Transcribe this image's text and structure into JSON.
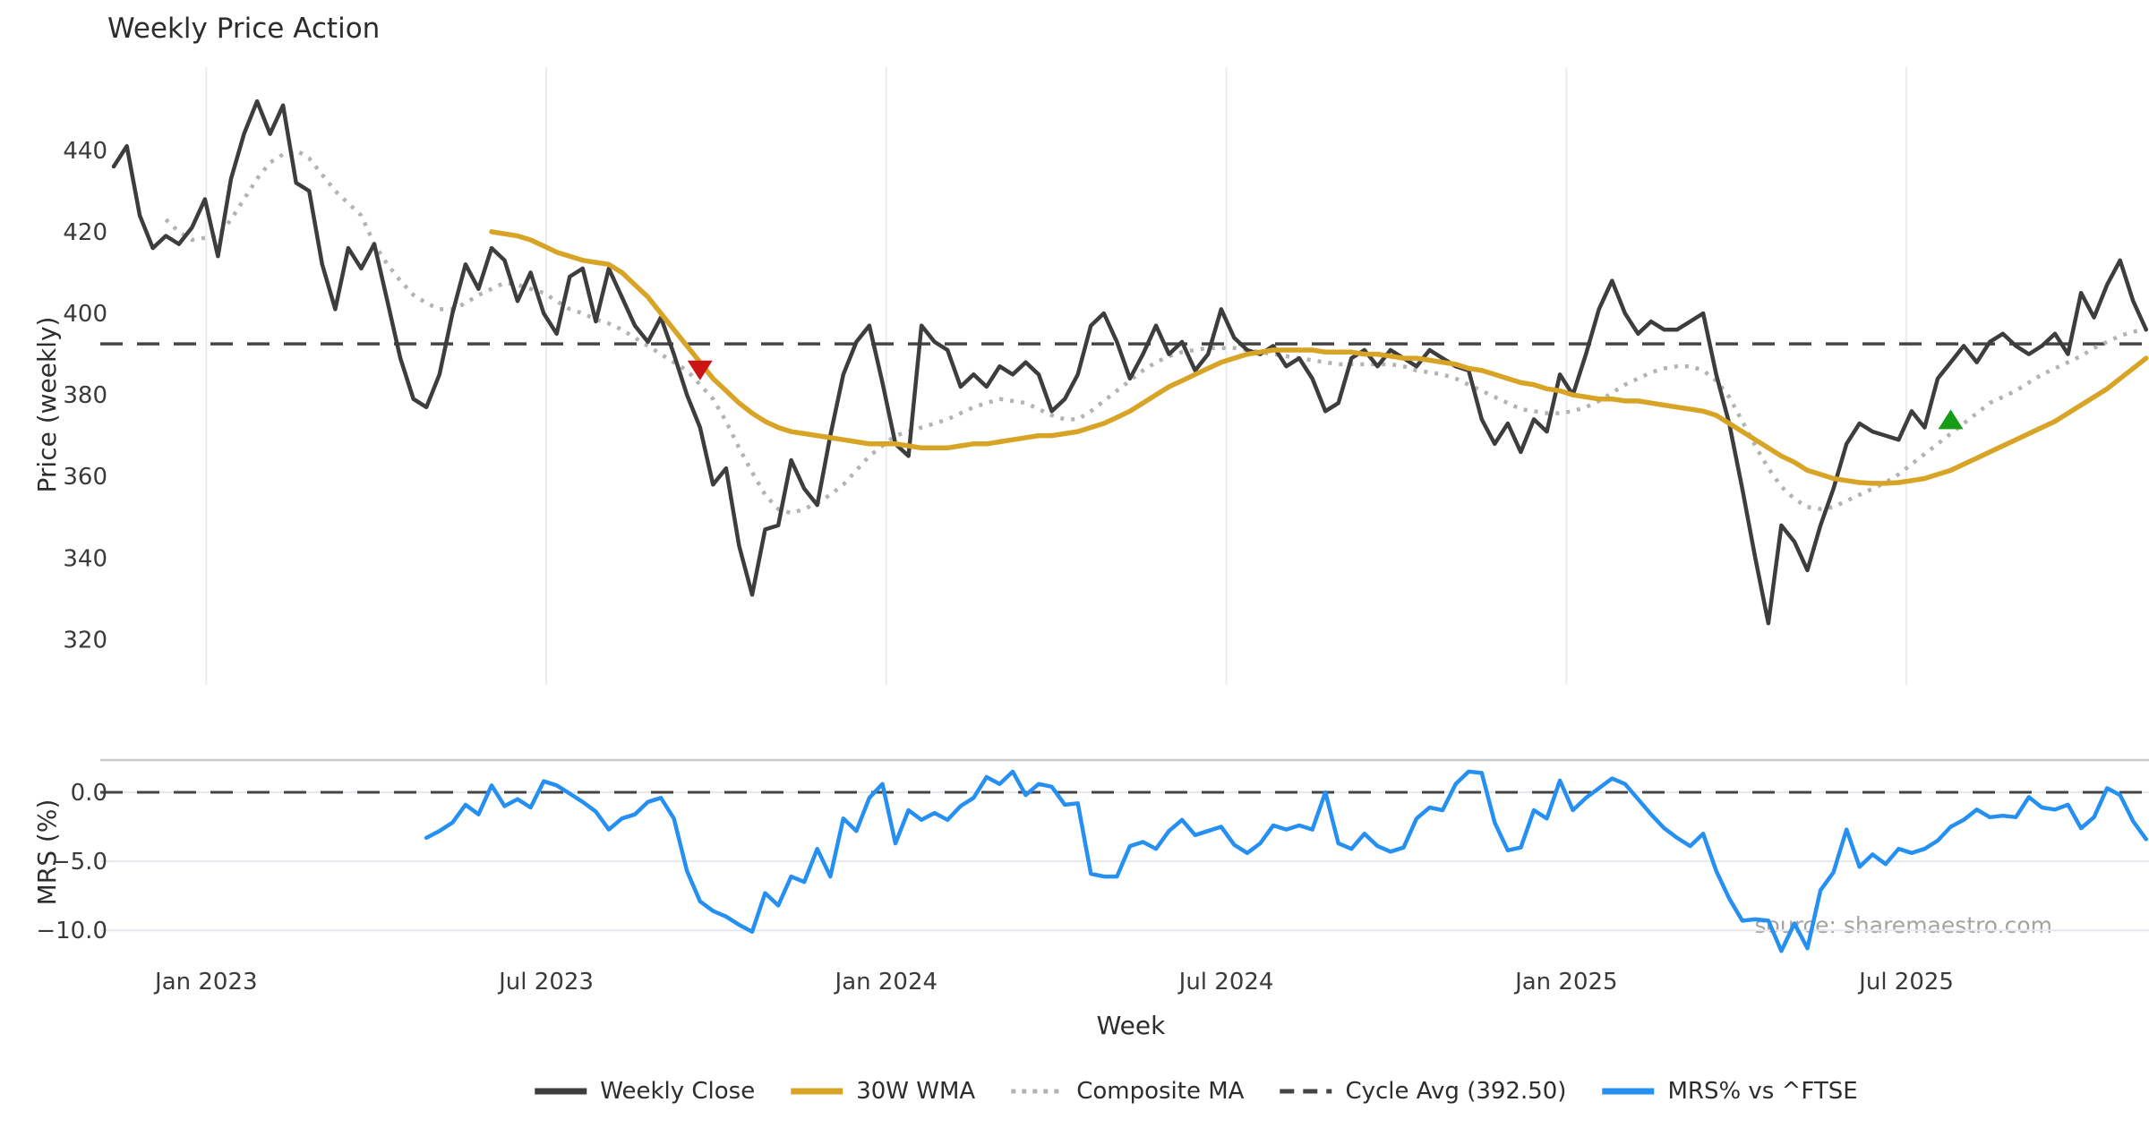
{
  "title": "Weekly Price Action",
  "source_note": "source: sharemaestro.com",
  "chart_data": {
    "type": "line",
    "title": "Weekly Price Action",
    "xlabel": "Week",
    "x_ticks": [
      {
        "week": 7.1,
        "label": "Jan 2023"
      },
      {
        "week": 33.2,
        "label": "Jul 2023"
      },
      {
        "week": 59.3,
        "label": "Jan 2024"
      },
      {
        "week": 85.4,
        "label": "Jul 2024"
      },
      {
        "week": 111.5,
        "label": "Jan 2025"
      },
      {
        "week": 137.6,
        "label": "Jul 2025"
      }
    ],
    "n_weeks": 157,
    "colors": {
      "weekly_close": "#3d3d3d",
      "wma": "#d7a426",
      "composite": "#b3b3b3",
      "cycle_avg": "#454545",
      "mrs": "#2590f2",
      "sell": "#cd1414",
      "buy": "#169c16",
      "grid_top": "#ececf0",
      "grid_bottom": "#e7e7ee",
      "spine": "#c9c9c9",
      "text": "#2d2d2d",
      "tick_text": "#3a3a3a",
      "source_text": "#a3a3a3"
    },
    "panels": [
      {
        "ylabel": "Price (weekly)",
        "yticks": [
          440,
          420,
          400,
          380,
          360,
          340,
          320
        ],
        "ytick_labels": [
          "440",
          "420",
          "400",
          "380",
          "360",
          "340",
          "320"
        ],
        "cycle_avg_value": 392.5,
        "series": [
          {
            "name": "Weekly Close",
            "style": "solid",
            "color_key": "weekly_close",
            "start_week": 0,
            "values": [
              436,
              441,
              424,
              416,
              419,
              417,
              421,
              428,
              414,
              433,
              444,
              452,
              444,
              451,
              432,
              430,
              412,
              401,
              416,
              411,
              417,
              403,
              389,
              379,
              377,
              385,
              400,
              412,
              406,
              416,
              413,
              403,
              410,
              400,
              395,
              409,
              411,
              398,
              411,
              404,
              397,
              393,
              399,
              390,
              380,
              372,
              358,
              362,
              343,
              331,
              347,
              348,
              364,
              357,
              353,
              370,
              385,
              393,
              397,
              383,
              368,
              365,
              397,
              393,
              391,
              382,
              385,
              382,
              387,
              385,
              388,
              385,
              376,
              379,
              385,
              397,
              400,
              393,
              384,
              390,
              397,
              390,
              393,
              386,
              390,
              401,
              394,
              391,
              390,
              392,
              387,
              389,
              384,
              376,
              378,
              389,
              391,
              387,
              391,
              389,
              387,
              391,
              389,
              387,
              386,
              374,
              368,
              373,
              366,
              374,
              371,
              385,
              380,
              390,
              401,
              408,
              400,
              395,
              398,
              396,
              396,
              398,
              400,
              385,
              373,
              357,
              340,
              324,
              348,
              344,
              337,
              348,
              357,
              368,
              373,
              371,
              370,
              369,
              376,
              372,
              384,
              388,
              392,
              388,
              393,
              395,
              392,
              390,
              392,
              395,
              390,
              405,
              399,
              407,
              413,
              403,
              396
            ]
          },
          {
            "name": "30W WMA",
            "style": "solid",
            "color_key": "wma",
            "start_week": 29,
            "values": [
              420,
              419.5,
              419,
              418,
              416.5,
              415,
              414,
              413,
              412.5,
              412,
              410,
              407,
              404,
              400,
              396,
              392,
              388,
              384,
              381,
              378,
              375.5,
              373.5,
              372,
              371,
              370.5,
              370,
              369.5,
              369,
              368.5,
              368,
              368,
              368,
              367.5,
              367,
              367,
              367,
              367.5,
              368,
              368,
              368.5,
              369,
              369.5,
              370,
              370,
              370.5,
              371,
              372,
              373,
              374.5,
              376,
              378,
              380,
              382,
              383.5,
              385,
              386.5,
              388,
              389,
              390,
              390.5,
              391,
              391,
              391,
              391,
              390.5,
              390.5,
              390.5,
              390,
              390,
              389.5,
              389,
              389,
              388.5,
              388,
              387.5,
              386.5,
              386,
              385,
              384,
              383,
              382.5,
              381.5,
              381,
              380,
              379.5,
              379,
              379,
              378.5,
              378.5,
              378,
              377.5,
              377,
              376.5,
              376,
              375,
              373,
              371,
              369,
              367,
              365,
              363.5,
              361.5,
              360.5,
              359.5,
              359,
              358.5,
              358.3,
              358.3,
              358.5,
              359,
              359.5,
              360.5,
              361.5,
              363,
              364.5,
              366,
              367.5,
              369,
              370.5,
              372,
              373.5,
              375.5,
              377.5,
              379.5,
              381.5,
              384,
              386.5,
              389
            ]
          },
          {
            "name": "Composite MA",
            "style": "dotted",
            "color_key": "composite",
            "start_week": 4,
            "values": [
              423,
              420,
              418,
              418.5,
              419,
              423,
              428,
              433,
              437,
              439,
              440,
              438,
              434,
              430,
              427,
              424,
              417,
              412,
              408,
              404.5,
              402.5,
              401,
              401,
              402.5,
              404.5,
              406,
              407.5,
              407,
              406,
              405,
              403,
              401,
              400,
              398.5,
              397.5,
              396,
              394,
              392,
              390,
              388,
              386,
              382.5,
              379,
              373.5,
              367,
              361,
              355.5,
              352,
              351,
              352,
              353.5,
              355.5,
              358,
              361.5,
              365,
              367.5,
              370,
              371,
              372,
              373,
              374,
              375.5,
              377,
              378,
              379,
              378.5,
              378,
              376.5,
              375,
              374,
              374,
              376,
              378.5,
              381,
              383.5,
              386,
              388,
              389.5,
              390.5,
              391,
              391.5,
              391.5,
              391.5,
              391,
              390.5,
              390,
              389.5,
              389,
              388.5,
              388,
              387.5,
              387.5,
              387.5,
              387.5,
              387.5,
              387,
              386,
              385.5,
              385,
              384,
              382.5,
              381,
              379.5,
              378,
              376.5,
              376,
              375.5,
              375.5,
              376,
              377,
              378.5,
              380.5,
              382.5,
              384,
              385.5,
              386.5,
              387,
              387,
              386,
              383.5,
              379.5,
              373.5,
              367.5,
              362,
              357.5,
              354.5,
              352.5,
              352,
              352.5,
              354,
              355.5,
              357,
              358.5,
              360.5,
              363,
              365.5,
              368,
              370.5,
              373,
              375.5,
              378,
              379.5,
              381,
              383,
              385,
              386.5,
              388,
              389.5,
              391.5,
              393,
              394.5,
              395.5,
              396
            ]
          }
        ],
        "markers": [
          {
            "name": "sell-signal",
            "shape": "triangle-down",
            "color_key": "sell",
            "week": 45,
            "price": 386
          },
          {
            "name": "buy-signal",
            "shape": "triangle-up",
            "color_key": "buy",
            "week": 141,
            "price": 374
          }
        ]
      },
      {
        "ylabel": "MRS (%)",
        "yticks": [
          0,
          -5,
          -10
        ],
        "ytick_labels": [
          "0.0",
          "−5.0",
          "−10.0"
        ],
        "zero_line_value": 0,
        "series": [
          {
            "name": "MRS% vs ^FTSE",
            "style": "solid",
            "color_key": "mrs",
            "start_week": 24,
            "values": [
              -3.3,
              -2.8,
              -2.2,
              -0.9,
              -1.6,
              0.5,
              -1.0,
              -0.5,
              -1.1,
              0.8,
              0.5,
              -0.1,
              -0.7,
              -1.4,
              -2.7,
              -1.9,
              -1.6,
              -0.7,
              -0.4,
              -1.9,
              -5.7,
              -7.9,
              -8.6,
              -9.0,
              -9.6,
              -10.1,
              -7.3,
              -8.2,
              -6.1,
              -6.5,
              -4.1,
              -6.1,
              -1.9,
              -2.8,
              -0.4,
              0.6,
              -3.7,
              -1.3,
              -2.0,
              -1.5,
              -2.0,
              -1.0,
              -0.4,
              1.1,
              0.6,
              1.5,
              -0.2,
              0.6,
              0.4,
              -0.9,
              -0.8,
              -5.9,
              -6.1,
              -6.1,
              -3.9,
              -3.6,
              -4.1,
              -2.8,
              -2.0,
              -3.1,
              -2.8,
              -2.5,
              -3.8,
              -4.4,
              -3.7,
              -2.4,
              -2.7,
              -2.4,
              -2.7,
              0.0,
              -3.7,
              -4.1,
              -3.0,
              -3.9,
              -4.3,
              -4.0,
              -1.9,
              -1.1,
              -1.3,
              0.6,
              1.5,
              1.4,
              -2.2,
              -4.2,
              -4.0,
              -1.3,
              -1.9,
              0.85,
              -1.3,
              -0.4,
              0.3,
              1.0,
              0.6,
              -0.5,
              -1.6,
              -2.6,
              -3.3,
              -3.9,
              -3.0,
              -5.7,
              -7.7,
              -9.3,
              -9.2,
              -9.3,
              -11.5,
              -9.5,
              -11.3,
              -7.1,
              -5.8,
              -2.7,
              -5.4,
              -4.5,
              -5.2,
              -4.1,
              -4.4,
              -4.1,
              -3.5,
              -2.5,
              -2.0,
              -1.25,
              -1.8,
              -1.7,
              -1.8,
              -0.35,
              -1.1,
              -1.25,
              -0.9,
              -2.6,
              -1.8,
              0.3,
              -0.2,
              -2.1,
              -3.4
            ]
          }
        ]
      }
    ],
    "legend": [
      {
        "label": "Weekly Close",
        "style": "solid",
        "color_key": "weekly_close"
      },
      {
        "label": "30W WMA",
        "style": "solid",
        "color_key": "wma"
      },
      {
        "label": "Composite MA",
        "style": "dotted",
        "color_key": "composite"
      },
      {
        "label": "Cycle Avg (392.50)",
        "style": "dashed",
        "color_key": "cycle_avg"
      },
      {
        "label": "MRS% vs ^FTSE",
        "style": "solid",
        "color_key": "mrs"
      }
    ]
  }
}
